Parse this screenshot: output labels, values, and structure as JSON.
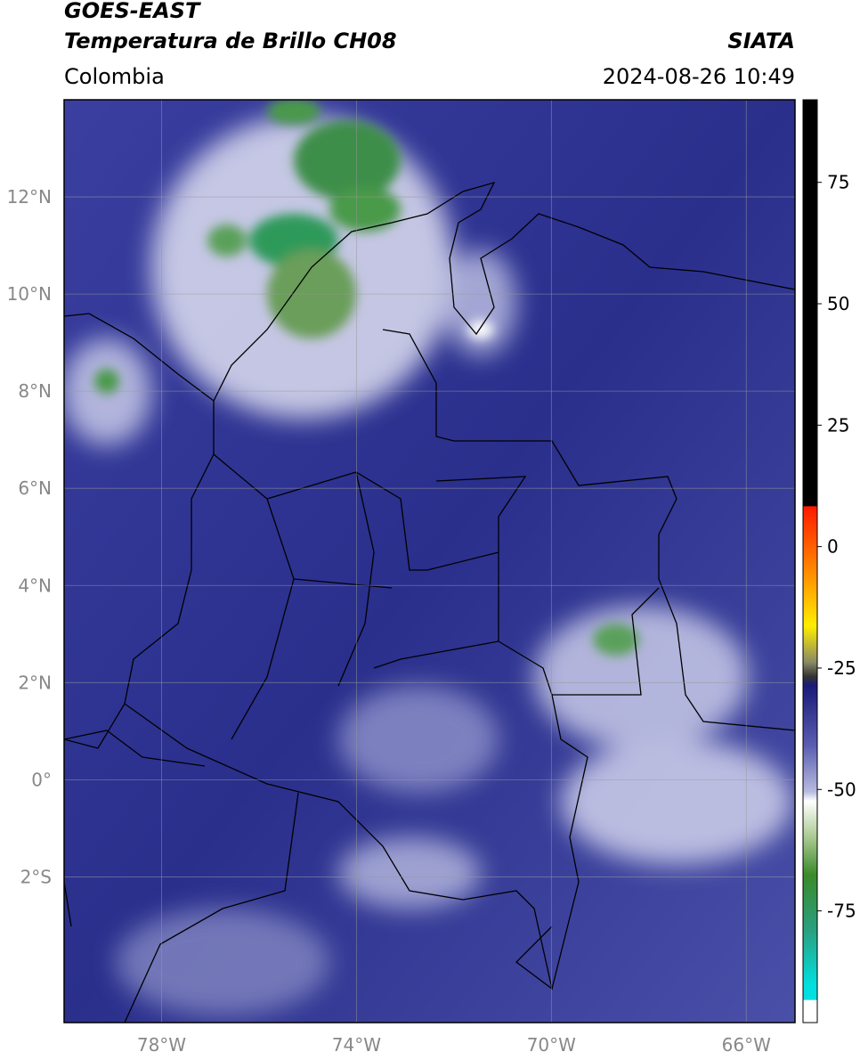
{
  "header": {
    "title": "GOES-EAST",
    "subtitle": "Temperatura de Brillo CH08",
    "region": "Colombia",
    "source": "SIATA",
    "datetime": "2024-08-26 10:49"
  },
  "map": {
    "xlim": [
      -80,
      -65
    ],
    "ylim": [
      -5,
      14
    ],
    "xticks": [
      {
        "value": -78,
        "label": "78°W"
      },
      {
        "value": -74,
        "label": "74°W"
      },
      {
        "value": -70,
        "label": "70°W"
      },
      {
        "value": -66,
        "label": "66°W"
      }
    ],
    "yticks": [
      {
        "value": 12,
        "label": "12°N"
      },
      {
        "value": 10,
        "label": "10°N"
      },
      {
        "value": 8,
        "label": "8°N"
      },
      {
        "value": 6,
        "label": "6°N"
      },
      {
        "value": 4,
        "label": "4°N"
      },
      {
        "value": 2,
        "label": "2°N"
      },
      {
        "value": 0,
        "label": "0°"
      },
      {
        "value": -2,
        "label": "2°S"
      }
    ],
    "grid": true
  },
  "colorbar": {
    "clim": [
      -98,
      92
    ],
    "ticks": [
      75,
      50,
      25,
      0,
      -25,
      -50,
      -75
    ]
  }
}
